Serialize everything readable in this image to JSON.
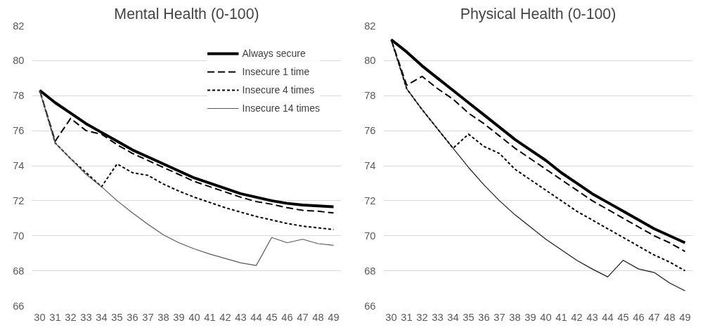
{
  "chart_data": [
    {
      "type": "line",
      "title": "Mental Health (0-100)",
      "categories": [
        "30",
        "31",
        "32",
        "33",
        "34",
        "35",
        "36",
        "37",
        "38",
        "39",
        "40",
        "41",
        "42",
        "43",
        "44",
        "45",
        "46",
        "47",
        "48",
        "49"
      ],
      "ylim": [
        66,
        82
      ],
      "yticks": [
        66,
        68,
        70,
        72,
        74,
        76,
        78,
        80,
        82
      ],
      "grid": "y",
      "legend": "top right",
      "series": [
        {
          "name": "Always secure",
          "color": "#000000",
          "line_style": "solid",
          "values": [
            78.3,
            77.6,
            77.0,
            76.4,
            75.9,
            75.4,
            74.9,
            74.5,
            74.1,
            73.7,
            73.3,
            73.0,
            72.7,
            72.4,
            72.2,
            72.0,
            71.85,
            71.75,
            71.7,
            71.65
          ]
        },
        {
          "name": "Insecure 1 time",
          "color": "#000000",
          "line_style": "dashed",
          "values": [
            78.3,
            75.4,
            76.7,
            76.0,
            75.8,
            75.2,
            74.7,
            74.3,
            73.9,
            73.5,
            73.1,
            72.8,
            72.5,
            72.2,
            71.95,
            71.8,
            71.6,
            71.45,
            71.4,
            71.3
          ]
        },
        {
          "name": "Insecure 4 times",
          "color": "#000000",
          "line_style": "dotted",
          "values": [
            78.3,
            75.3,
            74.4,
            73.6,
            72.8,
            74.1,
            73.6,
            73.45,
            72.95,
            72.55,
            72.2,
            71.9,
            71.6,
            71.35,
            71.1,
            70.9,
            70.7,
            70.55,
            70.45,
            70.35
          ]
        },
        {
          "name": "Insecure 14 times",
          "color": "#595959",
          "line_style": "solid",
          "values": [
            78.3,
            75.3,
            74.4,
            73.5,
            72.8,
            72.0,
            71.3,
            70.65,
            70.05,
            69.6,
            69.25,
            68.95,
            68.7,
            68.45,
            68.3,
            69.9,
            69.6,
            69.8,
            69.55,
            69.45
          ]
        }
      ]
    },
    {
      "type": "line",
      "title": "Physical Health (0-100)",
      "categories": [
        "30",
        "31",
        "32",
        "33",
        "34",
        "35",
        "36",
        "37",
        "38",
        "39",
        "40",
        "41",
        "42",
        "43",
        "44",
        "45",
        "46",
        "47",
        "48",
        "49"
      ],
      "ylim": [
        66,
        82
      ],
      "yticks": [
        66,
        68,
        70,
        72,
        74,
        76,
        78,
        80,
        82
      ],
      "grid": "y",
      "series": [
        {
          "color": "#000000",
          "line_style": "solid",
          "values": [
            81.2,
            80.5,
            79.7,
            79.0,
            78.3,
            77.6,
            76.9,
            76.2,
            75.5,
            74.9,
            74.3,
            73.6,
            73.0,
            72.4,
            71.9,
            71.4,
            70.9,
            70.4,
            70.0,
            69.6
          ]
        },
        {
          "color": "#000000",
          "line_style": "dashed",
          "values": [
            81.2,
            78.6,
            79.1,
            78.4,
            77.8,
            77.0,
            76.4,
            75.7,
            75.0,
            74.4,
            73.8,
            73.2,
            72.6,
            72.0,
            71.5,
            71.0,
            70.5,
            70.0,
            69.6,
            69.1
          ]
        },
        {
          "color": "#000000",
          "line_style": "dotted",
          "values": [
            81.2,
            78.4,
            77.2,
            76.1,
            75.0,
            75.8,
            75.1,
            74.7,
            73.8,
            73.2,
            72.6,
            72.0,
            71.4,
            70.9,
            70.4,
            69.9,
            69.4,
            68.9,
            68.5,
            68.0
          ]
        },
        {
          "color": "#1a1a1a",
          "line_style": "solid",
          "values": [
            81.2,
            78.4,
            77.2,
            76.1,
            75.0,
            73.9,
            72.9,
            72.0,
            71.2,
            70.5,
            69.8,
            69.2,
            68.6,
            68.1,
            67.65,
            68.6,
            68.1,
            67.9,
            67.3,
            66.85
          ]
        }
      ]
    }
  ]
}
